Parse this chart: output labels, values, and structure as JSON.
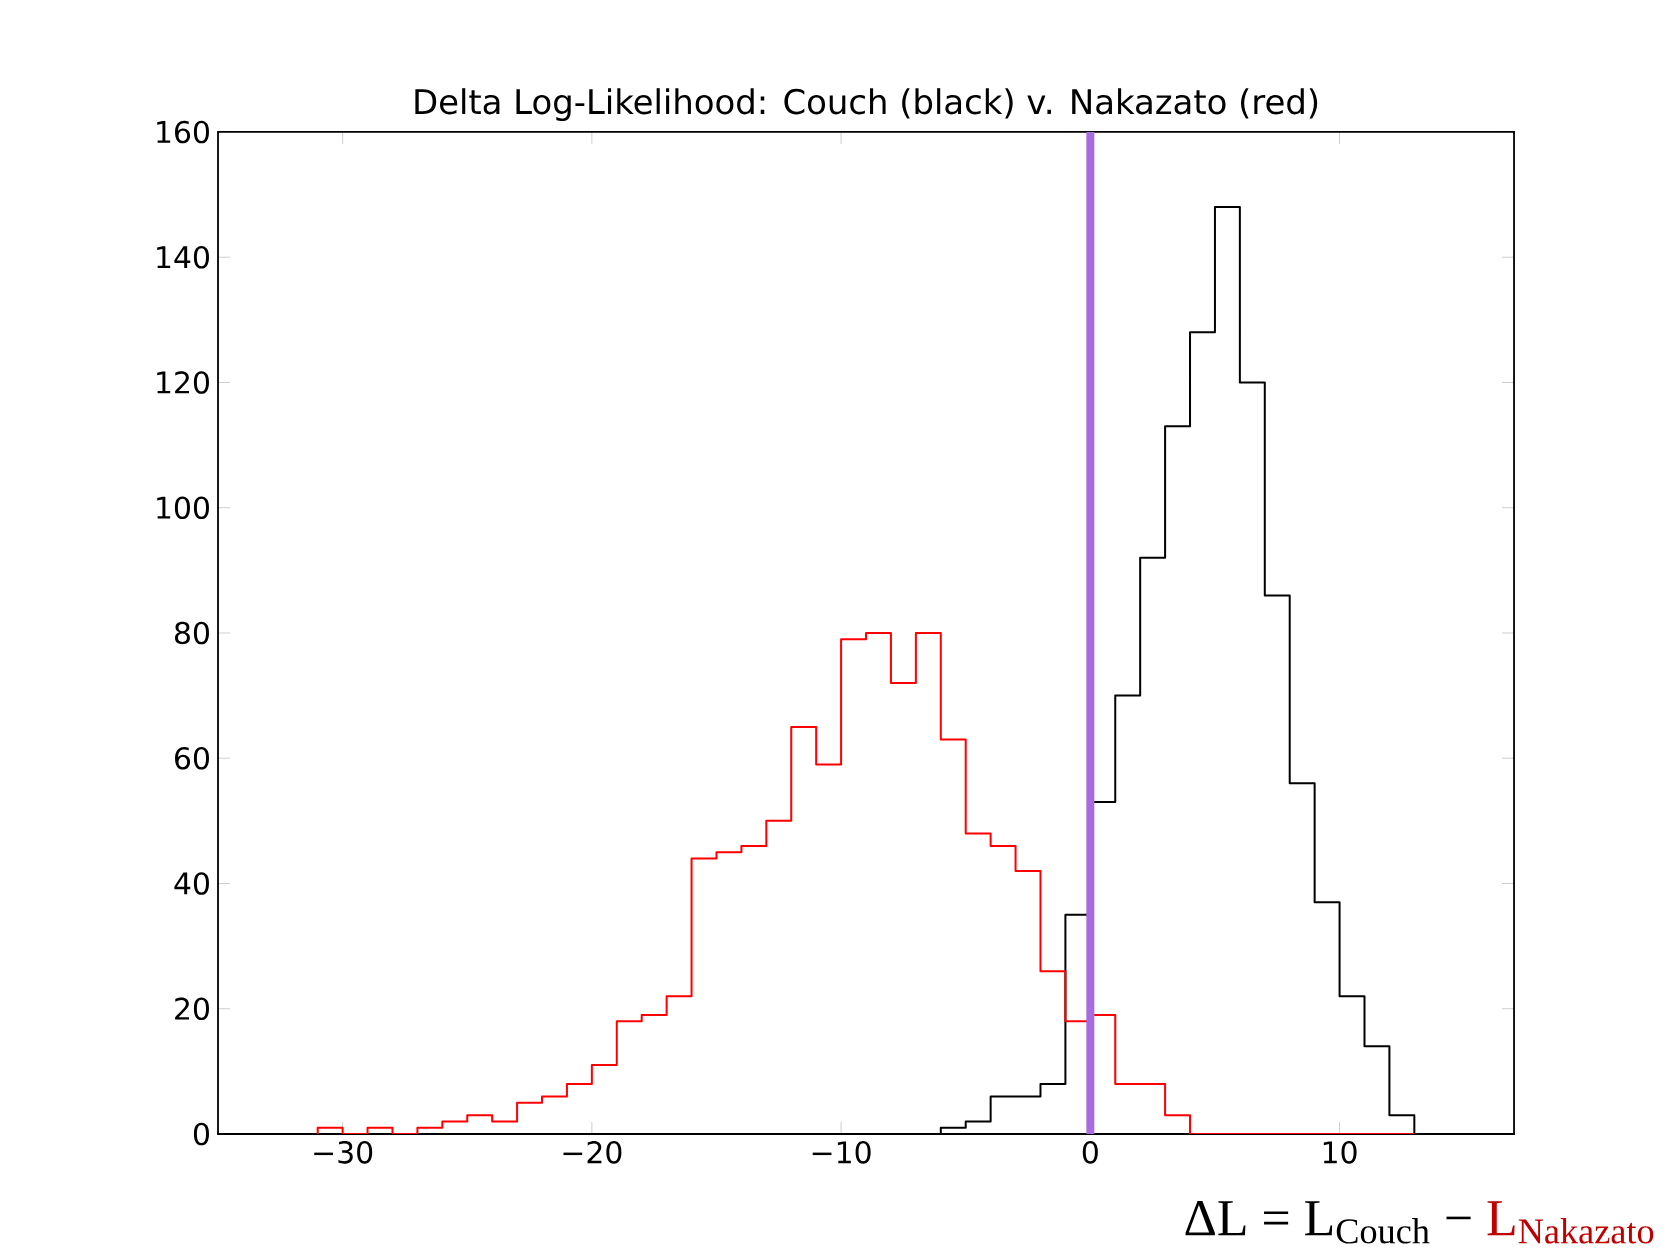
{
  "chart_data": {
    "type": "histogram",
    "title": "Delta Log-Likelihood: Couch (black) v. Nakazato (red)",
    "bins": [
      -31,
      -30,
      -29,
      -28,
      -27,
      -26,
      -25,
      -24,
      -23,
      -22,
      -21,
      -20,
      -19,
      -18,
      -17,
      -16,
      -15,
      -14,
      -13,
      -12,
      -11,
      -10,
      -9,
      -8,
      -7,
      -6,
      -5,
      -4,
      -3,
      -2,
      -1,
      0,
      1,
      2,
      3,
      4,
      5,
      6,
      7,
      8,
      9,
      10,
      11,
      12,
      13
    ],
    "series": [
      {
        "color": "#000000",
        "values": [
          0,
          0,
          0,
          0,
          0,
          0,
          0,
          0,
          0,
          0,
          0,
          0,
          0,
          0,
          0,
          0,
          0,
          0,
          0,
          0,
          0,
          0,
          0,
          0,
          0,
          1,
          2,
          6,
          6,
          8,
          35,
          53,
          70,
          92,
          113,
          128,
          148,
          120,
          86,
          56,
          37,
          22,
          14,
          3
        ]
      },
      {
        "color": "#ff0000",
        "values": [
          1,
          0,
          1,
          0,
          1,
          2,
          3,
          2,
          5,
          6,
          8,
          11,
          18,
          19,
          22,
          44,
          45,
          46,
          50,
          65,
          59,
          79,
          80,
          72,
          80,
          63,
          48,
          46,
          42,
          26,
          18,
          19,
          8,
          8,
          3,
          0,
          0,
          0,
          0,
          0,
          0,
          0,
          0,
          0
        ]
      }
    ],
    "xlim": [
      -35,
      17
    ],
    "ylim": [
      0,
      160
    ],
    "xticks": [
      {
        "value": -30,
        "label": "−30"
      },
      {
        "value": -20,
        "label": "−20"
      },
      {
        "value": -10,
        "label": "−10"
      },
      0,
      10
    ],
    "yticks": [
      0,
      20,
      40,
      60,
      80,
      100,
      120,
      140,
      160
    ],
    "ref_lines": [
      {
        "axis": "x",
        "value": 0,
        "color": "#a86ce0"
      }
    ],
    "grid": false,
    "annotations": [
      "ΔL = L$_{Couch}$ −",
      "L$_{Nakazato}$"
    ]
  }
}
